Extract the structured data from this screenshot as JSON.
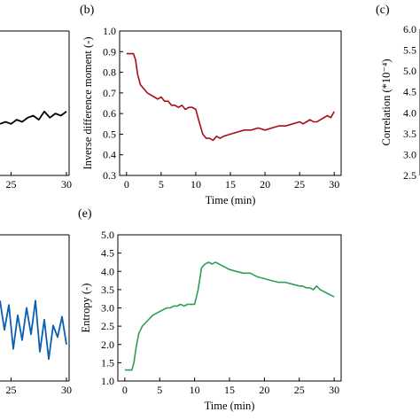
{
  "chart_data": [
    {
      "id": "a",
      "panel_label": "",
      "type": "line",
      "color": "#000000",
      "xlabel": "",
      "ylabel": "",
      "x_visible_range": [
        24,
        30
      ],
      "y_visible_range": [
        0.3,
        1.0
      ],
      "xticks": [
        "25",
        "30"
      ],
      "x": [
        24.0,
        24.5,
        25.0,
        25.5,
        26.0,
        26.5,
        27.0,
        27.5,
        28.0,
        28.5,
        29.0,
        29.5,
        30.0
      ],
      "y": [
        0.55,
        0.56,
        0.55,
        0.57,
        0.56,
        0.58,
        0.59,
        0.57,
        0.61,
        0.58,
        0.6,
        0.59,
        0.61
      ]
    },
    {
      "id": "b",
      "panel_label": "(b)",
      "type": "line",
      "color": "#a50f15",
      "xlabel": "Time (min)",
      "ylabel": "Inverse difference moment (-)",
      "xlim": [
        -1,
        31
      ],
      "ylim": [
        0.3,
        1.0
      ],
      "xticks": [
        "0",
        "5",
        "10",
        "15",
        "20",
        "25",
        "30"
      ],
      "yticks": [
        "0.3",
        "0.4",
        "0.5",
        "0.6",
        "0.7",
        "0.8",
        "0.9",
        "1.0"
      ],
      "x": [
        0,
        0.5,
        1.0,
        1.3,
        1.6,
        2.0,
        2.5,
        3.0,
        3.5,
        4.0,
        4.5,
        5.0,
        5.5,
        6.0,
        6.5,
        7.0,
        7.5,
        8.0,
        8.5,
        9.0,
        9.5,
        10.0,
        10.5,
        11.0,
        11.5,
        12.0,
        12.5,
        13.0,
        13.5,
        14.0,
        15.0,
        16.0,
        17.0,
        18.0,
        19.0,
        20.0,
        21.0,
        22.0,
        23.0,
        24.0,
        25.0,
        25.5,
        26.0,
        26.5,
        27.0,
        27.5,
        28.0,
        28.5,
        29.0,
        29.5,
        30.0
      ],
      "y": [
        0.89,
        0.89,
        0.89,
        0.86,
        0.79,
        0.74,
        0.72,
        0.7,
        0.69,
        0.68,
        0.67,
        0.68,
        0.66,
        0.66,
        0.64,
        0.64,
        0.63,
        0.64,
        0.62,
        0.63,
        0.63,
        0.62,
        0.56,
        0.5,
        0.48,
        0.48,
        0.47,
        0.49,
        0.48,
        0.49,
        0.5,
        0.51,
        0.52,
        0.52,
        0.53,
        0.52,
        0.53,
        0.54,
        0.54,
        0.55,
        0.56,
        0.55,
        0.56,
        0.57,
        0.56,
        0.56,
        0.57,
        0.58,
        0.59,
        0.58,
        0.61
      ]
    },
    {
      "id": "c",
      "panel_label": "(c)",
      "type": "line",
      "color": "#000000",
      "xlabel": "",
      "ylabel": "Correlation (*10⁻⁴)",
      "ylim": [
        2.5,
        6.0
      ],
      "yticks": [
        "2.5",
        "3.0",
        "3.5",
        "4.0",
        "4.5",
        "5.0",
        "5.5",
        "6.0"
      ],
      "x": [],
      "y": []
    },
    {
      "id": "d",
      "panel_label": "",
      "type": "line",
      "color": "#0b5fb0",
      "xlabel": "",
      "ylabel": "",
      "x_visible_range": [
        24,
        30
      ],
      "y_visible_range": [
        0,
        1
      ],
      "xticks": [
        "25",
        "30"
      ],
      "x": [
        24.0,
        24.4,
        24.8,
        25.2,
        25.6,
        26.0,
        26.4,
        26.8,
        27.2,
        27.6,
        28.0,
        28.4,
        28.8,
        29.2,
        29.6,
        30.0
      ],
      "y": [
        0.55,
        0.35,
        0.52,
        0.22,
        0.45,
        0.28,
        0.5,
        0.32,
        0.55,
        0.2,
        0.42,
        0.15,
        0.38,
        0.3,
        0.44,
        0.25
      ]
    },
    {
      "id": "e",
      "panel_label": "(e)",
      "type": "line",
      "color": "#2e9e58",
      "xlabel": "Time (min)",
      "ylabel": "Entropy (-)",
      "xlim": [
        -1,
        31
      ],
      "ylim": [
        1.0,
        5.0
      ],
      "xticks": [
        "0",
        "5",
        "10",
        "15",
        "20",
        "25",
        "30"
      ],
      "yticks": [
        "1.0",
        "1.5",
        "2.0",
        "2.5",
        "3.0",
        "3.5",
        "4.0",
        "4.5",
        "5.0"
      ],
      "x": [
        0,
        0.5,
        1.0,
        1.3,
        1.6,
        2.0,
        2.5,
        3.0,
        3.5,
        4.0,
        4.5,
        5.0,
        5.5,
        6.0,
        6.5,
        7.0,
        7.5,
        8.0,
        8.5,
        9.0,
        9.5,
        10.0,
        10.5,
        11.0,
        11.5,
        12.0,
        12.5,
        13.0,
        13.5,
        14.0,
        15.0,
        16.0,
        17.0,
        18.0,
        19.0,
        20.0,
        21.0,
        22.0,
        23.0,
        24.0,
        25.0,
        25.5,
        26.0,
        26.5,
        27.0,
        27.5,
        28.0,
        28.5,
        29.0,
        29.5,
        30.0
      ],
      "y": [
        1.3,
        1.3,
        1.3,
        1.5,
        1.9,
        2.3,
        2.5,
        2.6,
        2.7,
        2.8,
        2.85,
        2.9,
        2.95,
        3.0,
        3.0,
        3.05,
        3.05,
        3.1,
        3.05,
        3.1,
        3.1,
        3.1,
        3.5,
        4.1,
        4.2,
        4.25,
        4.2,
        4.25,
        4.2,
        4.15,
        4.05,
        4.0,
        3.95,
        3.95,
        3.85,
        3.8,
        3.75,
        3.7,
        3.7,
        3.65,
        3.6,
        3.6,
        3.55,
        3.55,
        3.5,
        3.6,
        3.5,
        3.45,
        3.4,
        3.35,
        3.3
      ]
    }
  ]
}
